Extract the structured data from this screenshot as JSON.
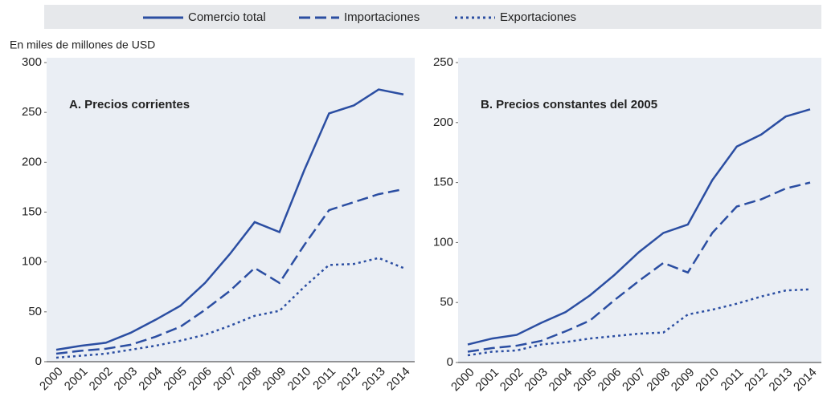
{
  "chart_data": [
    {
      "type": "line",
      "title": "A. Precios corrientes",
      "y_label": "En miles de millones de USD",
      "x": [
        "2000",
        "2001",
        "2002",
        "2003",
        "2004",
        "2005",
        "2006",
        "2007",
        "2008",
        "2009",
        "2010",
        "2011",
        "2012",
        "2013",
        "2014"
      ],
      "ylim": [
        0,
        300
      ],
      "yticks": [
        0,
        50,
        100,
        150,
        200,
        250,
        300
      ],
      "series": [
        {
          "name": "Comercio total",
          "color": "#2b4ea2",
          "dash": "solid",
          "values": [
            12,
            16,
            19,
            29,
            42,
            56,
            79,
            108,
            140,
            130,
            192,
            249,
            257,
            273,
            268
          ]
        },
        {
          "name": "Importaciones",
          "color": "#2b4ea2",
          "dash": "dashed",
          "values": [
            8,
            11,
            13,
            17,
            25,
            35,
            52,
            71,
            94,
            79,
            117,
            152,
            160,
            168,
            173
          ]
        },
        {
          "name": "Exportaciones",
          "color": "#2b4ea2",
          "dash": "dotted",
          "values": [
            4,
            6,
            8,
            12,
            16,
            21,
            27,
            36,
            46,
            51,
            75,
            97,
            98,
            104,
            94
          ]
        }
      ]
    },
    {
      "type": "line",
      "title": "B. Precios constantes del 2005",
      "x": [
        "2000",
        "2001",
        "2002",
        "2003",
        "2004",
        "2005",
        "2006",
        "2007",
        "2008",
        "2009",
        "2010",
        "2011",
        "2012",
        "2013",
        "2014"
      ],
      "ylim": [
        0,
        250
      ],
      "yticks": [
        0,
        50,
        100,
        150,
        200,
        250
      ],
      "series": [
        {
          "color": "#2b4ea2",
          "dash": "solid",
          "values": [
            15,
            20,
            23,
            33,
            42,
            56,
            73,
            92,
            108,
            115,
            152,
            180,
            190,
            205,
            211
          ]
        },
        {
          "color": "#2b4ea2",
          "dash": "dashed",
          "values": [
            9,
            12,
            14,
            18,
            26,
            35,
            52,
            68,
            83,
            75,
            108,
            130,
            136,
            145,
            150
          ]
        },
        {
          "color": "#2b4ea2",
          "dash": "dotted",
          "values": [
            6,
            9,
            10,
            15,
            17,
            20,
            22,
            24,
            25,
            40,
            44,
            49,
            55,
            60,
            61
          ]
        }
      ]
    }
  ]
}
